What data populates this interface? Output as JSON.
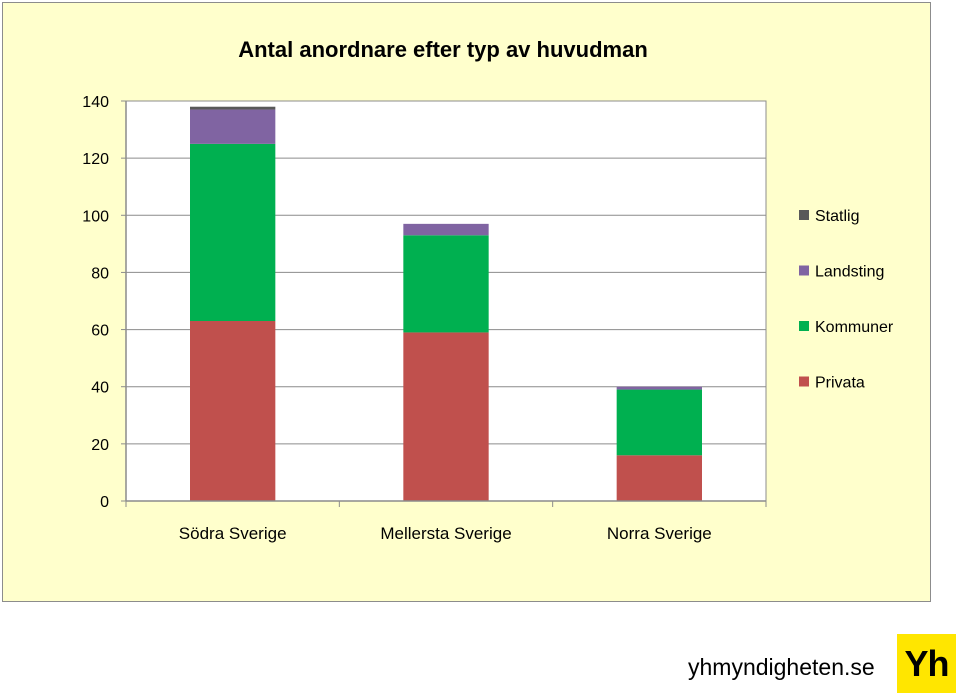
{
  "chart_data": {
    "type": "bar",
    "stacked": true,
    "title": "Antal anordnare efter typ av huvudman",
    "categories": [
      "Södra Sverige",
      "Mellersta Sverige",
      "Norra Sverige"
    ],
    "series": [
      {
        "name": "Privata",
        "color": "#c0504d",
        "values": [
          63,
          59,
          16
        ]
      },
      {
        "name": "Kommuner",
        "color": "#00b050",
        "values": [
          62,
          34,
          23
        ]
      },
      {
        "name": "Landsting",
        "color": "#8064a2",
        "values": [
          12,
          4,
          1
        ]
      },
      {
        "name": "Statlig",
        "color": "#595959",
        "values": [
          1,
          0,
          0
        ]
      }
    ],
    "ylim": [
      0,
      140
    ],
    "yticks": [
      0,
      20,
      40,
      60,
      80,
      100,
      120,
      140
    ],
    "grid": true,
    "legend": "right"
  },
  "footer": {
    "url": "yhmyndigheten.se",
    "logo_text": "Yh"
  }
}
